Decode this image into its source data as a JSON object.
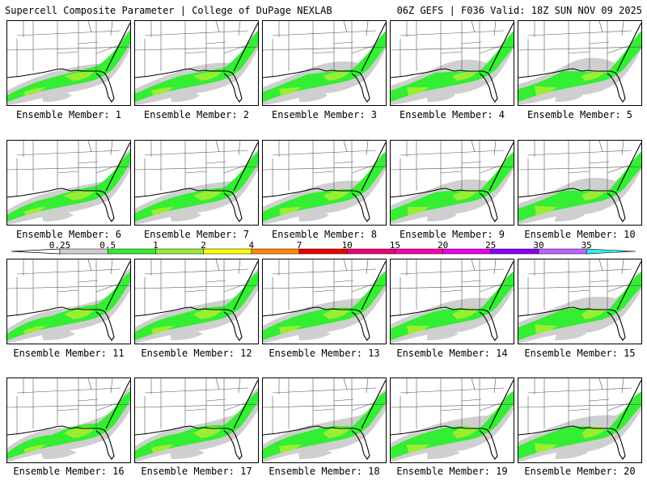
{
  "header": {
    "left": "Supercell Composite Parameter | College of DuPage NEXLAB",
    "right": "06Z GEFS | F036 Valid: 18Z SUN NOV 09 2025"
  },
  "members": [
    "Ensemble Member: 1",
    "Ensemble Member: 2",
    "Ensemble Member: 3",
    "Ensemble Member: 4",
    "Ensemble Member: 5",
    "Ensemble Member: 6",
    "Ensemble Member: 7",
    "Ensemble Member: 8",
    "Ensemble Member: 9",
    "Ensemble Member: 10",
    "Ensemble Member: 11",
    "Ensemble Member: 12",
    "Ensemble Member: 13",
    "Ensemble Member: 14",
    "Ensemble Member: 15",
    "Ensemble Member: 16",
    "Ensemble Member: 17",
    "Ensemble Member: 18",
    "Ensemble Member: 19",
    "Ensemble Member: 20"
  ],
  "colorbar": {
    "labels": [
      "0.25",
      "0.5",
      "1",
      "2",
      "4",
      "7",
      "10",
      "15",
      "20",
      "25",
      "30",
      "35"
    ],
    "colors": [
      "#cfcfcf",
      "#33ee33",
      "#99ee33",
      "#ffff00",
      "#ff8800",
      "#ee0000",
      "#ee0077",
      "#ff00aa",
      "#ee00ee",
      "#8800ff",
      "#bb66ff",
      "#33eeee"
    ]
  },
  "colors": {
    "land_outline": "#000000",
    "state_lines": "#555555",
    "shade_light": "#cfcfcf",
    "shade_green": "#33ee33",
    "shade_lime": "#99ee33"
  },
  "map_icons": [
    "florida-coast-outline",
    "state-borders"
  ]
}
